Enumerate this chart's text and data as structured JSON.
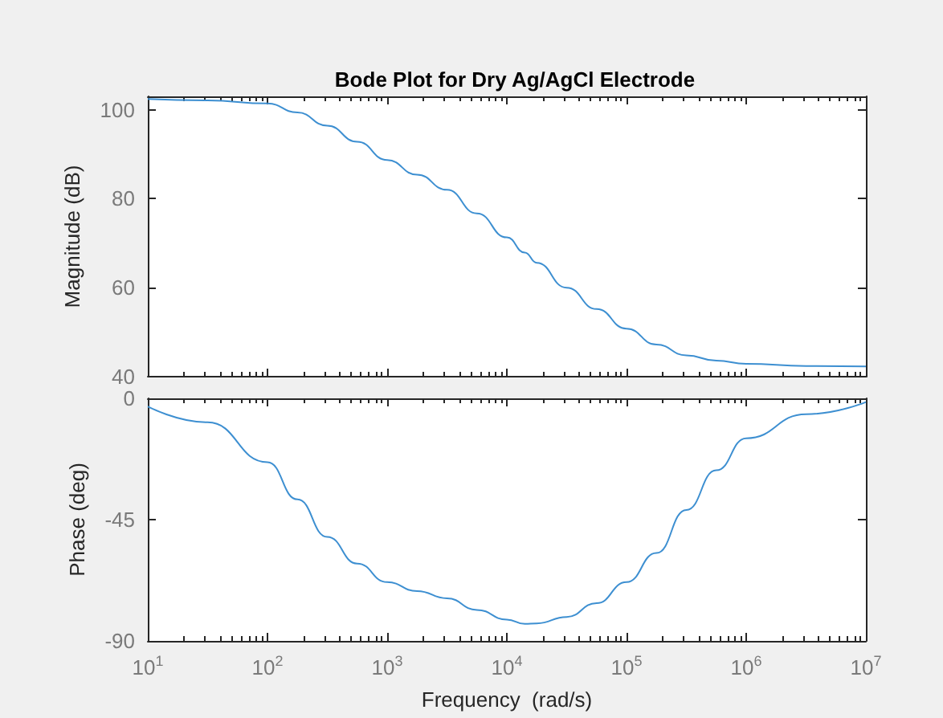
{
  "chart_data": [
    {
      "type": "line",
      "title": "Bode Plot for Dry Ag/AgCl Electrode",
      "ylabel": "Magnitude (dB)",
      "log": "x",
      "tick_labels": "y",
      "x": [
        10,
        31.6,
        100,
        178,
        316,
        562,
        1000,
        1778,
        3162,
        5623,
        10000,
        14125,
        17783,
        31623,
        56234,
        100000,
        177828,
        316228,
        562341,
        1000000,
        3162278,
        10000000
      ],
      "series": [
        {
          "color": "#3d8fd1",
          "values": [
            102.4,
            102.1,
            101.4,
            99.4,
            96.4,
            92.8,
            88.7,
            85.4,
            82,
            76.7,
            71.3,
            67.9,
            65.6,
            60,
            55.2,
            50.8,
            47.2,
            44.8,
            43.6,
            42.9,
            42.4,
            42.3
          ]
        }
      ],
      "xlim": [
        10,
        10000000
      ],
      "xticks": [
        {
          "value": 10,
          "label": null
        },
        {
          "value": 100,
          "label": null
        },
        {
          "value": 1000,
          "label": null
        },
        {
          "value": 10000,
          "label": null
        },
        {
          "value": 100000,
          "label": null
        },
        {
          "value": 1000000,
          "label": null
        },
        {
          "value": 10000000,
          "label": null
        }
      ],
      "ylim": [
        40,
        103
      ],
      "yticks": [
        40,
        60,
        80,
        100
      ]
    },
    {
      "type": "line",
      "xlabel": "Frequency  (rad/s)",
      "ylabel": "Phase (deg)",
      "log": "x",
      "x": [
        10,
        31.6,
        100,
        178,
        316,
        562,
        1000,
        1778,
        3162,
        5623,
        10000,
        14125,
        17783,
        31623,
        56234,
        100000,
        177828,
        316228,
        562341,
        1000000,
        3162278,
        10000000
      ],
      "series": [
        {
          "color": "#3d8fd1",
          "values": [
            -3,
            -8.9,
            -23.7,
            -37.5,
            -51.4,
            -61.3,
            -68.2,
            -71.5,
            -74.2,
            -78.5,
            -82.1,
            -83.7,
            -83.5,
            -81.1,
            -76,
            -68.2,
            -57.4,
            -41.4,
            -26.7,
            -14.8,
            -5.9,
            -1.4
          ]
        }
      ],
      "xlim": [
        10,
        10000000
      ],
      "xticks": [
        {
          "value": 10,
          "label": "10$^{1}$"
        },
        {
          "value": 100,
          "label": "10$^{2}$"
        },
        {
          "value": 1000,
          "label": "10$^{3}$"
        },
        {
          "value": 10000,
          "label": "10$^{4}$"
        },
        {
          "value": 100000,
          "label": "10$^{5}$"
        },
        {
          "value": 1000000,
          "label": "10$^{6}$"
        },
        {
          "value": 10000000,
          "label": "10$^{7}$"
        }
      ],
      "ylim": [
        -90,
        0
      ],
      "yticks": [
        -90,
        -45,
        0
      ]
    }
  ]
}
